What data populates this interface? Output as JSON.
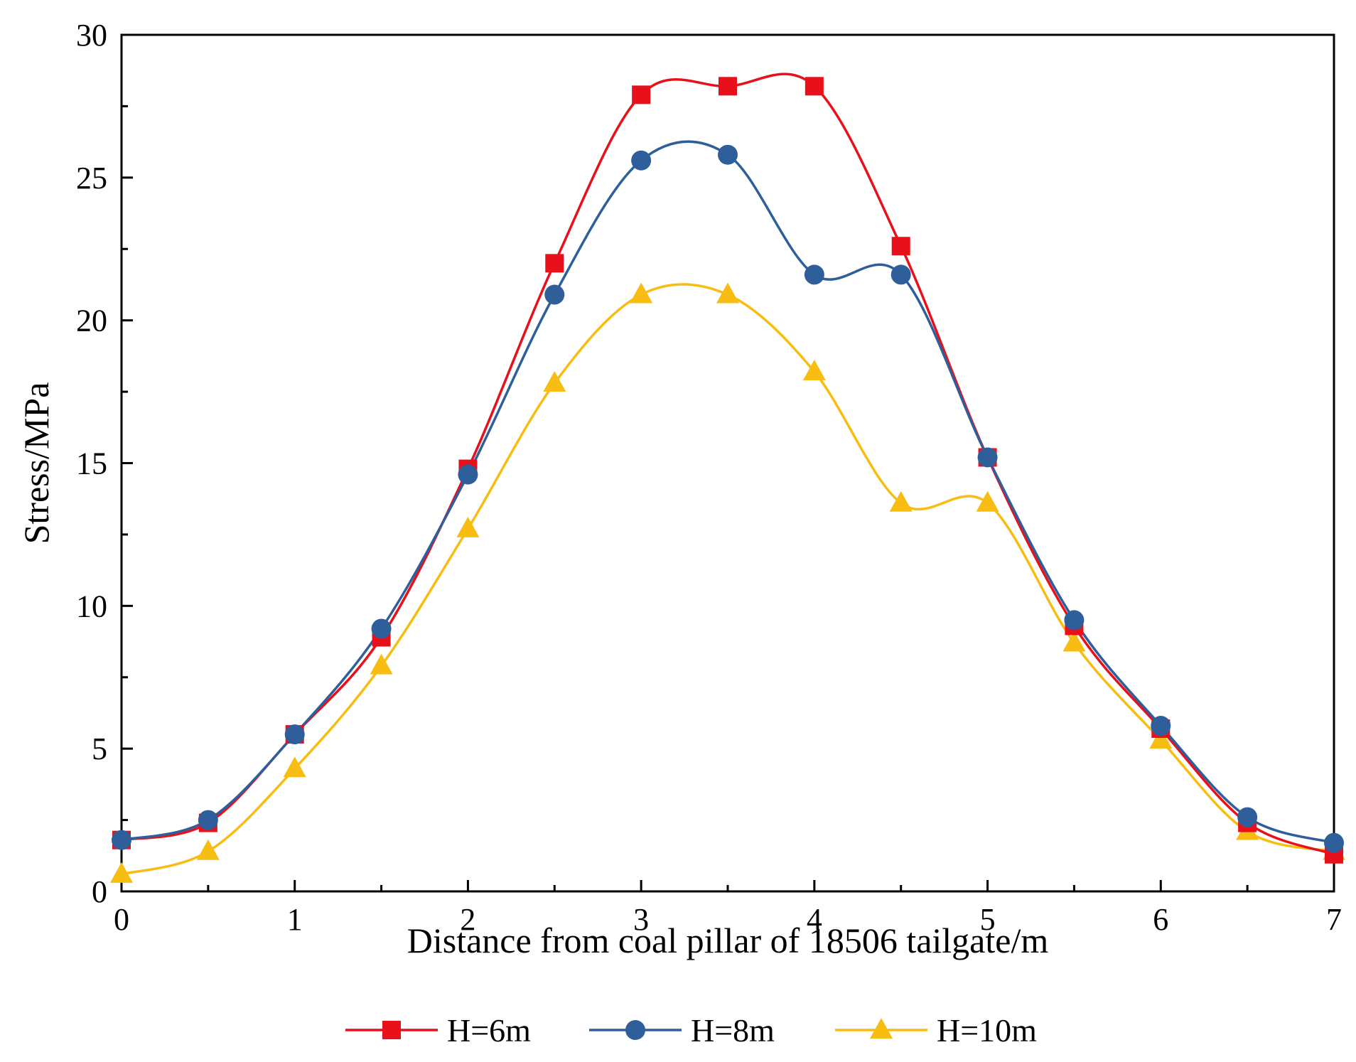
{
  "chart_data": {
    "type": "line",
    "title": "",
    "xlabel": "Distance from coal pillar of 18506 tailgate/m",
    "ylabel": "Stress/MPa",
    "xlim": [
      0,
      7
    ],
    "ylim": [
      0,
      30
    ],
    "xticks": [
      0,
      1,
      2,
      3,
      4,
      5,
      6,
      7
    ],
    "yticks": [
      0,
      5,
      10,
      15,
      20,
      25,
      30
    ],
    "grid": false,
    "legend_position": "bottom",
    "x": [
      0,
      0.5,
      1,
      1.5,
      2,
      2.5,
      3,
      3.5,
      4,
      4.5,
      5,
      5.5,
      6,
      6.5,
      7
    ],
    "series": [
      {
        "name": "H=6m",
        "color": "#e8101a",
        "marker": "square",
        "values": [
          1.8,
          2.4,
          5.5,
          8.9,
          14.8,
          22.0,
          27.9,
          28.2,
          28.2,
          22.6,
          15.2,
          9.3,
          5.7,
          2.4,
          1.3
        ]
      },
      {
        "name": "H=8m",
        "color": "#2f5f9a",
        "marker": "circle",
        "values": [
          1.8,
          2.5,
          5.5,
          9.2,
          14.6,
          20.9,
          25.6,
          25.8,
          21.6,
          21.6,
          15.2,
          9.5,
          5.8,
          2.6,
          1.7
        ]
      },
      {
        "name": "H=10m",
        "color": "#f7bd12",
        "marker": "triangle",
        "values": [
          0.6,
          1.4,
          4.3,
          7.9,
          12.7,
          17.8,
          20.9,
          20.9,
          18.2,
          13.6,
          13.6,
          8.7,
          5.3,
          2.1,
          1.4
        ]
      }
    ]
  }
}
